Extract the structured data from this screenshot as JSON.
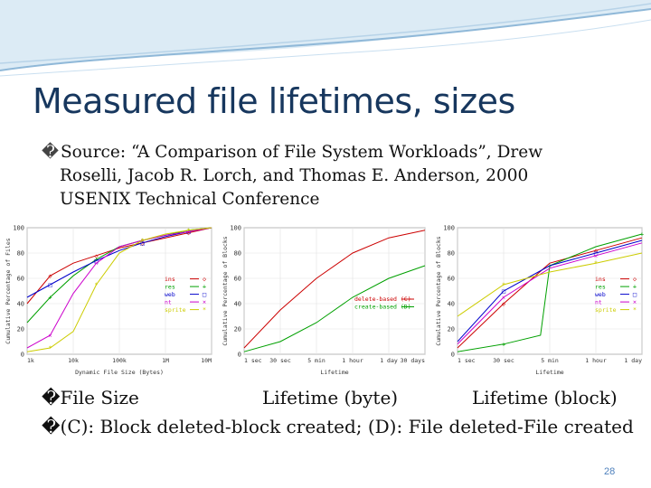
{
  "slide": {
    "title": "Measured file lifetimes, sizes",
    "source_lines": [
      "Source: “A Comparison of File System Workloads”, Drew",
      "Roselli, Jacob R. Lorch, and Thomas E. Anderson, 2000",
      "USENIX Technical Conference"
    ],
    "bullet_glyph": "�",
    "captions": {
      "file_size": "File Size",
      "lifetime_byte": "Lifetime (byte)",
      "lifetime_block": "Lifetime (block)"
    },
    "note": "(C): Block deleted-block created; (D): File deleted-File created",
    "page_number": "28",
    "colors": {
      "title": "#17375e",
      "accent": "#4f81bd",
      "wave": "#8fb8d8"
    }
  },
  "chart_data": [
    {
      "type": "line",
      "ylabel": "Cumulative Percentage of Files",
      "xlabel": "Dynamic File Size (Bytes)",
      "x_ticks": [
        "1k",
        "10k",
        "100k",
        "1M",
        "10M"
      ],
      "y_ticks": [
        "0",
        "20",
        "40",
        "60",
        "80",
        "100"
      ],
      "xlim": [
        0,
        4
      ],
      "ylim": [
        0,
        100
      ],
      "legend_position": "lower-right",
      "series": [
        {
          "name": "ins",
          "color": "#cc0000",
          "marker": "◇",
          "x": [
            0,
            0.5,
            1,
            1.5,
            2,
            2.5,
            3,
            3.5,
            4
          ],
          "y": [
            40,
            62,
            72,
            78,
            84,
            88,
            92,
            96,
            100
          ]
        },
        {
          "name": "res",
          "color": "#00a000",
          "marker": "+",
          "x": [
            0,
            0.5,
            1,
            1.5,
            2,
            2.5,
            3,
            3.5,
            4
          ],
          "y": [
            25,
            45,
            62,
            75,
            85,
            90,
            94,
            98,
            100
          ]
        },
        {
          "name": "web",
          "color": "#0000cc",
          "marker": "□",
          "x": [
            0,
            0.5,
            1,
            1.5,
            2,
            2.5,
            3,
            3.5,
            4
          ],
          "y": [
            45,
            55,
            65,
            74,
            82,
            88,
            93,
            97,
            100
          ]
        },
        {
          "name": "nt",
          "color": "#cc00cc",
          "marker": "×",
          "x": [
            0,
            0.5,
            1,
            1.5,
            2,
            2.5,
            3,
            3.5,
            4
          ],
          "y": [
            5,
            15,
            48,
            72,
            85,
            90,
            94,
            97,
            100
          ]
        },
        {
          "name": "sprite",
          "color": "#cccc00",
          "marker": "*",
          "x": [
            0,
            0.5,
            1,
            1.5,
            2,
            2.5,
            3,
            3.5,
            4
          ],
          "y": [
            2,
            5,
            18,
            55,
            80,
            90,
            95,
            98,
            100
          ]
        }
      ]
    },
    {
      "type": "line",
      "ylabel": "Cumulative Percentage of Blocks",
      "xlabel": "Lifetime",
      "x_ticks": [
        "1 sec",
        "30 sec",
        "5 min",
        "1 hour",
        "1 day",
        "30 days"
      ],
      "y_ticks": [
        "0",
        "20",
        "40",
        "60",
        "80",
        "100"
      ],
      "xlim": [
        0,
        5
      ],
      "ylim": [
        0,
        100
      ],
      "legend_position": "center-right",
      "series": [
        {
          "name": "delete-based (C)",
          "color": "#cc0000",
          "x": [
            0,
            1,
            2,
            3,
            4,
            5
          ],
          "y": [
            5,
            35,
            60,
            80,
            92,
            98
          ]
        },
        {
          "name": "create-based (D)",
          "color": "#00a000",
          "x": [
            0,
            1,
            2,
            3,
            4,
            5
          ],
          "y": [
            2,
            10,
            25,
            45,
            60,
            70
          ]
        }
      ]
    },
    {
      "type": "line",
      "ylabel": "Cumulative Percentage of Blocks",
      "xlabel": "Lifetime",
      "x_ticks": [
        "1 sec",
        "30 sec",
        "5 min",
        "1 hour",
        "1 day"
      ],
      "y_ticks": [
        "0",
        "20",
        "40",
        "60",
        "80",
        "100"
      ],
      "xlim": [
        0,
        4
      ],
      "ylim": [
        0,
        100
      ],
      "legend_position": "lower-right",
      "series": [
        {
          "name": "ins",
          "color": "#cc0000",
          "marker": "◇",
          "x": [
            0,
            1,
            2,
            3,
            4
          ],
          "y": [
            5,
            40,
            72,
            82,
            92
          ]
        },
        {
          "name": "res",
          "color": "#00a000",
          "marker": "+",
          "x": [
            0,
            1,
            1.8,
            2,
            3,
            4
          ],
          "y": [
            2,
            8,
            15,
            70,
            85,
            95
          ]
        },
        {
          "name": "web",
          "color": "#0000cc",
          "marker": "□",
          "x": [
            0,
            1,
            2,
            3,
            4
          ],
          "y": [
            10,
            50,
            70,
            80,
            90
          ]
        },
        {
          "name": "nt",
          "color": "#cc00cc",
          "marker": "×",
          "x": [
            0,
            1,
            2,
            3,
            4
          ],
          "y": [
            8,
            45,
            68,
            78,
            88
          ]
        },
        {
          "name": "sprite",
          "color": "#cccc00",
          "marker": "*",
          "x": [
            0,
            1,
            2,
            3,
            4
          ],
          "y": [
            30,
            55,
            65,
            72,
            80
          ]
        }
      ]
    }
  ]
}
